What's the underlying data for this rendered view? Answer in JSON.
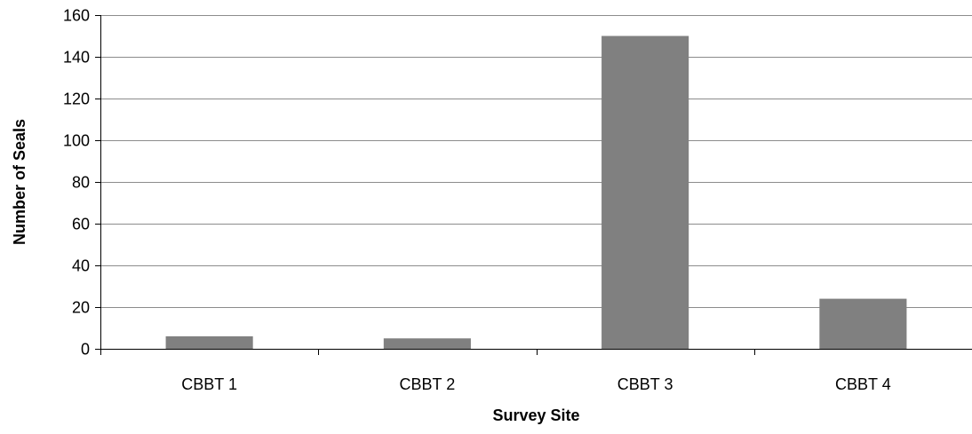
{
  "chart_data": {
    "type": "bar",
    "categories": [
      "CBBT 1",
      "CBBT 2",
      "CBBT 3",
      "CBBT 4"
    ],
    "values": [
      6,
      5,
      150,
      24
    ],
    "title": "",
    "xlabel": "Survey Site",
    "ylabel": "Number of Seals",
    "ylim": [
      0,
      160
    ],
    "yticks": [
      0,
      20,
      40,
      60,
      80,
      100,
      120,
      140,
      160
    ],
    "grid": true,
    "legend": "none",
    "bar_color": "#808080",
    "grid_color": "#8c8c8c",
    "axis_color": "#000000"
  }
}
